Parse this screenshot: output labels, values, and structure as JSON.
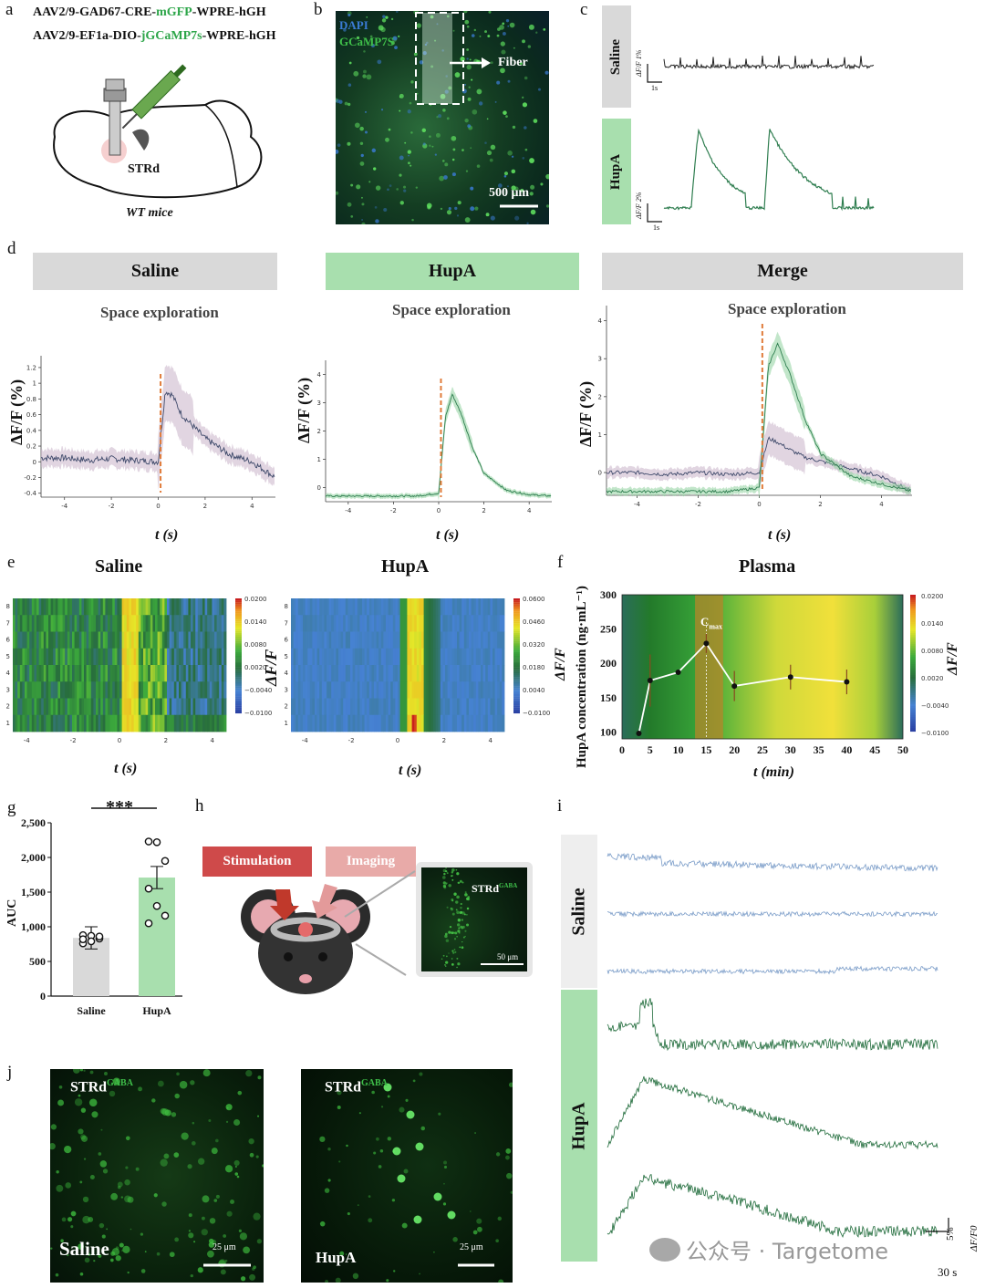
{
  "panels": {
    "a": "a",
    "b": "b",
    "c": "c",
    "d": "d",
    "e": "e",
    "f": "f",
    "g": "g",
    "h": "h",
    "i": "i",
    "j": "j"
  },
  "panel_a": {
    "line1": {
      "pre": "AAV2/9-GAD67-CRE-",
      "hl": "mGFP",
      "post": "-WPRE-hGH"
    },
    "line2": {
      "pre": "AAV2/9-EF1a-DIO-",
      "hl": "jGCaMP7s",
      "post": "-WPRE-hGH"
    },
    "region": "STRd",
    "mice": "WT mice"
  },
  "panel_b": {
    "dapi": "DAPI",
    "gcamp": "GCaMP7S",
    "fiber": "Fiber",
    "scale": "500 μm"
  },
  "panel_c": {
    "saline": "Saline",
    "hupa": "HupA",
    "saline_scale_y": "ΔF/F 1%",
    "hupa_scale_y": "ΔF/F 2%",
    "scale_x": "1s"
  },
  "panel_d": {
    "headers": [
      "Saline",
      "HupA",
      "Merge"
    ],
    "subtitle": "Space exploration",
    "ylabel": "ΔF/F (%)",
    "xlabel": "t (s)"
  },
  "panel_e": {
    "titles": [
      "Saline",
      "HupA"
    ],
    "xlabel": "t (s)",
    "cbar_label": "ΔF/F"
  },
  "panel_f": {
    "title": "Plasma",
    "ylabel": "HupA concentration (ng·mL⁻¹)",
    "xlabel": "t (min)",
    "cbar_label": "ΔF/F",
    "cmax": "C",
    "cmax_sub": "max"
  },
  "panel_g": {
    "stars": "***",
    "ylabel": "AUC"
  },
  "panel_h": {
    "stim": "Stimulation",
    "imaging": "Imaging",
    "inset_label": "STRd",
    "inset_sup": "GABA",
    "inset_scale": "50 μm"
  },
  "panel_i": {
    "saline": "Saline",
    "hupa": "HupA",
    "scale_y": "5%",
    "scale_x": "30 s",
    "unit": "ΔF/F0"
  },
  "panel_j": {
    "label": "STRd",
    "sup": "GABA",
    "left_cond": "Saline",
    "right_cond": "HupA",
    "scale": "25 μm"
  },
  "watermark": "公众号 · Targetome",
  "colors": {
    "saline": "#3f4a6b",
    "saline_band": "#c9b3c8",
    "hupa": "#2e7d4f",
    "hupa_band": "#8fd19e",
    "orange": "#e07b39",
    "gray_bar": "#d9d9d9",
    "green_bar": "#a8dfae",
    "red_stim": "#cf4a4a",
    "pink_img": "#e8aaa8"
  },
  "chart_data": [
    {
      "id": "d_saline",
      "type": "line",
      "title": "Space exploration",
      "xlabel": "t (s)",
      "ylabel": "ΔF/F (%)",
      "xlim": [
        -5,
        5
      ],
      "ylim": [
        -0.45,
        1.35
      ],
      "xticks": [
        -4,
        -2,
        0,
        2,
        4
      ],
      "yticks": [
        -0.4,
        -0.2,
        0,
        0.2,
        0.4,
        0.6,
        0.8,
        1.0,
        1.2
      ],
      "series": [
        {
          "x": [
            -5,
            -4,
            -3,
            -2,
            -1,
            0,
            0.3,
            0.6,
            1,
            1.5,
            2,
            2.5,
            3,
            4,
            5
          ],
          "values": [
            0.05,
            0.05,
            0.02,
            0.04,
            0.02,
            0.0,
            0.9,
            0.85,
            0.6,
            0.45,
            0.3,
            0.2,
            0.1,
            0.0,
            -0.2
          ]
        }
      ]
    },
    {
      "id": "d_hupa",
      "type": "line",
      "title": "Space exploration",
      "xlabel": "t (s)",
      "ylabel": "ΔF/F (%)",
      "xlim": [
        -5,
        5
      ],
      "ylim": [
        -0.5,
        4.5
      ],
      "xticks": [
        -4,
        -2,
        0,
        2,
        4
      ],
      "yticks": [
        0,
        1,
        2,
        3,
        4
      ],
      "series": [
        {
          "x": [
            -5,
            -4,
            -3,
            -2,
            -1,
            0,
            0.3,
            0.6,
            1,
            1.5,
            2,
            3,
            4,
            5
          ],
          "values": [
            -0.3,
            -0.3,
            -0.3,
            -0.3,
            -0.3,
            -0.2,
            2.5,
            3.3,
            2.6,
            1.4,
            0.5,
            -0.1,
            -0.25,
            -0.3
          ]
        }
      ]
    },
    {
      "id": "d_merge",
      "type": "line",
      "title": "Space exploration",
      "xlabel": "t (s)",
      "ylabel": "ΔF/F (%)",
      "xlim": [
        -5,
        5
      ],
      "ylim": [
        -0.6,
        4.4
      ],
      "xticks": [
        -4,
        -2,
        0,
        2,
        4
      ],
      "yticks": [
        0,
        1,
        2,
        3,
        4
      ],
      "series": [
        {
          "x": [
            -5,
            -4,
            -3,
            -2,
            -1,
            0,
            0.3,
            0.6,
            1,
            1.5,
            2,
            2.5,
            3,
            4,
            5
          ],
          "values": [
            0.0,
            0.0,
            -0.05,
            0.0,
            -0.05,
            0.0,
            0.9,
            0.8,
            0.6,
            0.4,
            0.3,
            0.2,
            0.1,
            -0.1,
            -0.5
          ]
        },
        {
          "x": [
            -5,
            -4,
            -3,
            -2,
            -1,
            0,
            0.3,
            0.6,
            1,
            1.5,
            2,
            3,
            4,
            5
          ],
          "values": [
            -0.5,
            -0.5,
            -0.5,
            -0.5,
            -0.5,
            -0.4,
            2.8,
            3.4,
            2.6,
            1.4,
            0.5,
            -0.1,
            -0.3,
            -0.5
          ]
        }
      ]
    },
    {
      "id": "e_saline",
      "type": "heatmap",
      "xlabel": "t (s)",
      "xticks": [
        -4,
        -2,
        0,
        2,
        4
      ],
      "rows": [
        1,
        2,
        3,
        4,
        5,
        6,
        7,
        8
      ],
      "colorbar": {
        "ticks": [
          "0.0200",
          "0.0140",
          "0.0080",
          "0.0020",
          "−0.0040",
          "−0.0100"
        ]
      }
    },
    {
      "id": "e_hupa",
      "type": "heatmap",
      "xlabel": "t (s)",
      "xticks": [
        -4,
        -2,
        0,
        2,
        4
      ],
      "rows": [
        1,
        2,
        3,
        4,
        5,
        6,
        7,
        8
      ],
      "colorbar": {
        "ticks": [
          "0.0600",
          "0.0460",
          "0.0320",
          "0.0180",
          "0.0040",
          "−0.0100"
        ]
      }
    },
    {
      "id": "f_plasma",
      "type": "line",
      "title": "Plasma",
      "xlabel": "t (min)",
      "ylabel": "HupA concentration (ng·mL⁻¹)",
      "xlim": [
        0,
        50
      ],
      "ylim": [
        90,
        300
      ],
      "xticks": [
        0,
        5,
        10,
        15,
        20,
        25,
        30,
        35,
        40,
        45,
        50
      ],
      "yticks": [
        100,
        150,
        200,
        250,
        300
      ],
      "series": [
        {
          "x": [
            3,
            5,
            10,
            15,
            20,
            30,
            40
          ],
          "values": [
            98,
            175,
            187,
            229,
            167,
            180,
            173
          ],
          "err": [
            0,
            38,
            0,
            14,
            22,
            18,
            18
          ]
        }
      ],
      "colorbar": {
        "ticks": [
          "0.0200",
          "0.0140",
          "0.0080",
          "0.0020",
          "−0.0040",
          "−0.0100"
        ]
      }
    },
    {
      "id": "g_auc",
      "type": "bar",
      "categories": [
        "Saline",
        "HupA"
      ],
      "values": [
        840,
        1710
      ],
      "points": [
        [
          880,
          870,
          830,
          760,
          790,
          860,
          820
        ],
        [
          2230,
          2220,
          1950,
          1550,
          1300,
          1160,
          1050
        ]
      ],
      "ylabel": "AUC",
      "ylim": [
        0,
        2500
      ],
      "yticks": [
        "0",
        "500",
        "1,000",
        "1,500",
        "2,000",
        "2,500"
      ],
      "sig": "***"
    }
  ]
}
